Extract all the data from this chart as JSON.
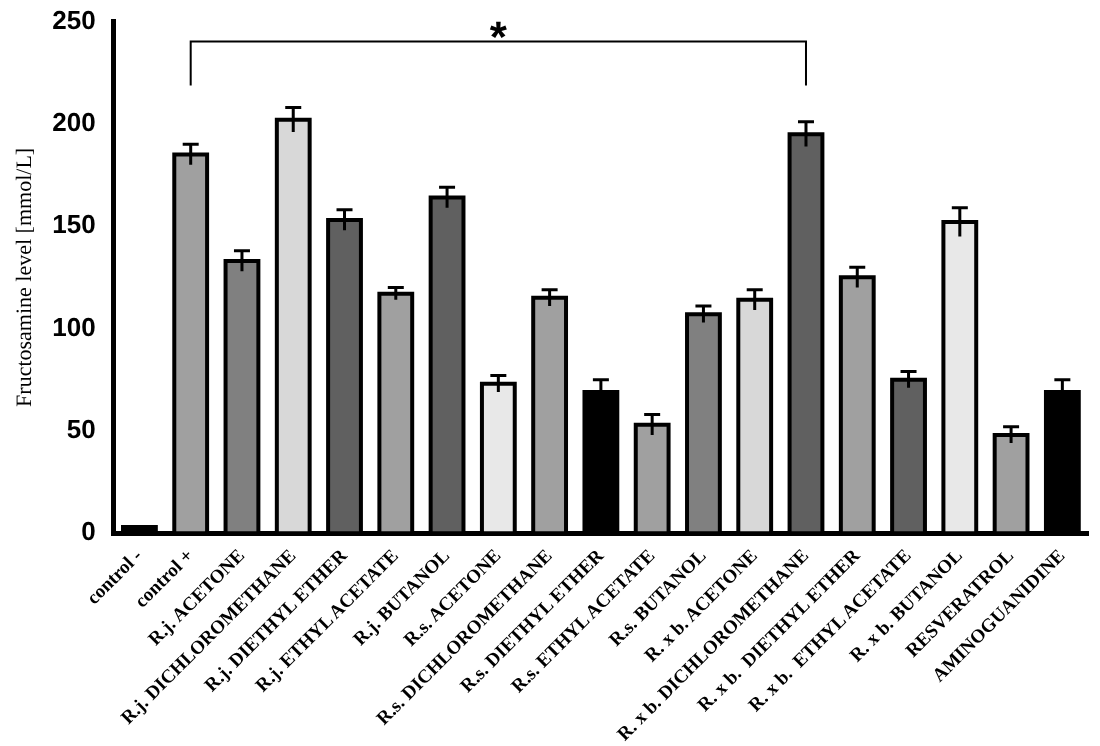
{
  "chart_data": {
    "type": "bar",
    "ylabel": "Fructosamine level [mmol/L]",
    "categories": [
      "control -",
      "control +",
      "R.j. ACETONE",
      "R.j. DICHLOROMETHANE",
      "R.j. DIETHYL ETHER",
      "R.j. ETHYL ACETATE",
      "R.j. BUTANOL",
      "R.s. ACETONE",
      "R.s. DICHLOROMETHANE",
      "R.s. DIETHYL ETHER",
      "R.s. ETHYL ACETATE",
      "R.s. BUTANOL",
      "R. x b. ACETONE",
      "R. x b. DICHLOROMETHANE",
      "R. x b.  DIETHYL ETHER",
      "R. x b.  ETHYL ACETATE",
      "R. x b. BUTANOL",
      "RESVERATROL",
      "AMINOGUANIDINE"
    ],
    "values": [
      3,
      185,
      133,
      202,
      153,
      117,
      164,
      73,
      115,
      69,
      53,
      107,
      114,
      195,
      125,
      75,
      152,
      48,
      69
    ],
    "errors": [
      null,
      5,
      5,
      6,
      5,
      3,
      5,
      4,
      4,
      6,
      5,
      4,
      5,
      6,
      5,
      4,
      7,
      4,
      6
    ],
    "colors": [
      "#000000",
      "#a0a0a0",
      "#808080",
      "#d8d8d8",
      "#606060",
      "#a0a0a0",
      "#606060",
      "#e8e8e8",
      "#a0a0a0",
      "#000000",
      "#a0a0a0",
      "#808080",
      "#d8d8d8",
      "#606060",
      "#a0a0a0",
      "#606060",
      "#e8e8e8",
      "#a0a0a0",
      "#000000"
    ],
    "ylim": [
      0,
      250
    ],
    "yticks": [
      0,
      50,
      100,
      150,
      200,
      250
    ],
    "grid": false,
    "legend": false,
    "annotations": [
      "*"
    ]
  }
}
